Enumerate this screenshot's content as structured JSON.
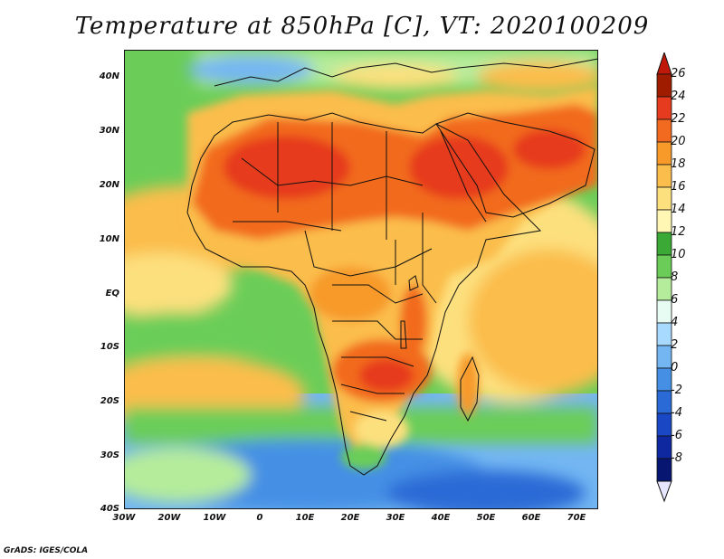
{
  "title": "Temperature at 850hPa [C], VT: 2020100209",
  "credit": "GrADS: IGES/COLA",
  "map": {
    "lat_labels": [
      "40N",
      "30N",
      "20N",
      "10N",
      "EQ",
      "10S",
      "20S",
      "30S",
      "40S"
    ],
    "lon_labels": [
      "30W",
      "20W",
      "10W",
      "0",
      "10E",
      "20E",
      "30E",
      "40E",
      "50E",
      "60E",
      "70E"
    ]
  },
  "colorbar": {
    "labels": [
      "26",
      "24",
      "22",
      "20",
      "18",
      "16",
      "14",
      "12",
      "10",
      "8",
      "6",
      "4",
      "2",
      "0",
      "-2",
      "-4",
      "-6",
      "-8"
    ],
    "colors": [
      "#a01c00",
      "#e63b1e",
      "#f26a1f",
      "#f79a2a",
      "#fbbd4b",
      "#fde07e",
      "#fff7b3",
      "#3aa935",
      "#6bcd58",
      "#b5ec9b",
      "#e8fcf4",
      "#a8d9ff",
      "#73b6f2",
      "#4590e5",
      "#2a6ad6",
      "#1a47c4",
      "#0f28a0",
      "#071670"
    ]
  }
}
